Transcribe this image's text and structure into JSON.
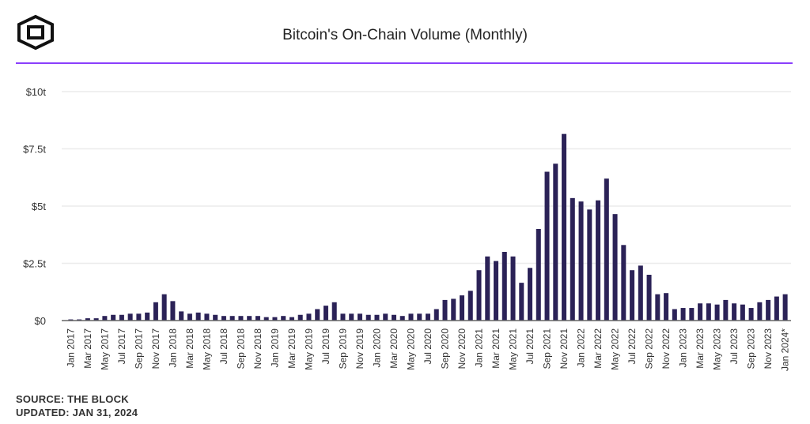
{
  "title": "Bitcoin's On-Chain Volume (Monthly)",
  "footer": {
    "source": "SOURCE: THE BLOCK",
    "updated": "UPDATED: JAN 31, 2024"
  },
  "colors": {
    "bar": "#2b2257",
    "accent": "#8a3ffc"
  },
  "chart_data": {
    "type": "bar",
    "title": "Bitcoin's On-Chain Volume (Monthly)",
    "ylim": [
      0,
      10
    ],
    "yticks": [
      {
        "v": 0,
        "label": "$0"
      },
      {
        "v": 2.5,
        "label": "$2.5t"
      },
      {
        "v": 5,
        "label": "$5t"
      },
      {
        "v": 7.5,
        "label": "$7.5t"
      },
      {
        "v": 10,
        "label": "$10t"
      }
    ],
    "grid": true,
    "categories": [
      "Jan 2017",
      "Feb 2017",
      "Mar 2017",
      "Apr 2017",
      "May 2017",
      "Jun 2017",
      "Jul 2017",
      "Aug 2017",
      "Sep 2017",
      "Oct 2017",
      "Nov 2017",
      "Dec 2017",
      "Jan 2018",
      "Feb 2018",
      "Mar 2018",
      "Apr 2018",
      "May 2018",
      "Jun 2018",
      "Jul 2018",
      "Aug 2018",
      "Sep 2018",
      "Oct 2018",
      "Nov 2018",
      "Dec 2018",
      "Jan 2019",
      "Feb 2019",
      "Mar 2019",
      "Apr 2019",
      "May 2019",
      "Jun 2019",
      "Jul 2019",
      "Aug 2019",
      "Sep 2019",
      "Oct 2019",
      "Nov 2019",
      "Dec 2019",
      "Jan 2020",
      "Feb 2020",
      "Mar 2020",
      "Apr 2020",
      "May 2020",
      "Jun 2020",
      "Jul 2020",
      "Aug 2020",
      "Sep 2020",
      "Oct 2020",
      "Nov 2020",
      "Dec 2020",
      "Jan 2021",
      "Feb 2021",
      "Mar 2021",
      "Apr 2021",
      "May 2021",
      "Jun 2021",
      "Jul 2021",
      "Aug 2021",
      "Sep 2021",
      "Oct 2021",
      "Nov 2021",
      "Dec 2021",
      "Jan 2022",
      "Feb 2022",
      "Mar 2022",
      "Apr 2022",
      "May 2022",
      "Jun 2022",
      "Jul 2022",
      "Aug 2022",
      "Sep 2022",
      "Oct 2022",
      "Nov 2022",
      "Dec 2022",
      "Jan 2023",
      "Feb 2023",
      "Mar 2023",
      "Apr 2023",
      "May 2023",
      "Jun 2023",
      "Jul 2023",
      "Aug 2023",
      "Sep 2023",
      "Oct 2023",
      "Nov 2023",
      "Dec 2023",
      "Jan 2024*"
    ],
    "values": [
      0.05,
      0.05,
      0.1,
      0.1,
      0.2,
      0.25,
      0.25,
      0.3,
      0.3,
      0.35,
      0.8,
      1.15,
      0.85,
      0.4,
      0.3,
      0.35,
      0.3,
      0.25,
      0.2,
      0.2,
      0.2,
      0.2,
      0.2,
      0.15,
      0.15,
      0.2,
      0.15,
      0.25,
      0.3,
      0.5,
      0.65,
      0.8,
      0.3,
      0.3,
      0.3,
      0.25,
      0.25,
      0.3,
      0.25,
      0.2,
      0.3,
      0.3,
      0.3,
      0.5,
      0.9,
      0.95,
      1.1,
      1.3,
      2.2,
      2.8,
      2.6,
      3.0,
      2.8,
      1.65,
      2.3,
      4.0,
      6.5,
      6.85,
      8.15,
      5.35,
      5.2,
      4.85,
      5.25,
      6.2,
      4.65,
      3.3,
      2.2,
      2.4,
      2.0,
      1.15,
      1.2,
      0.5,
      0.55,
      0.55,
      0.75,
      0.75,
      0.7,
      0.9,
      0.75,
      0.7,
      0.55,
      0.8,
      0.9,
      1.05,
      1.15
    ],
    "xtick_every": 2
  }
}
